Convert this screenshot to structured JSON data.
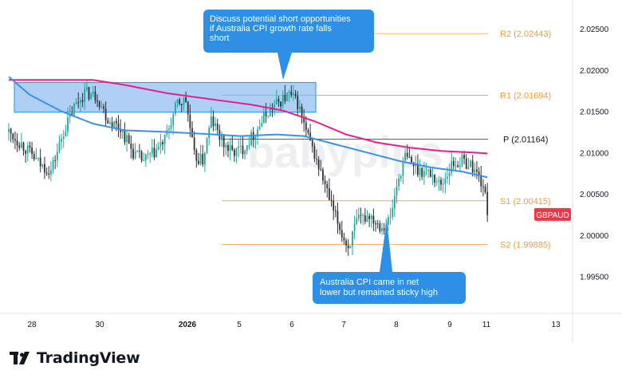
{
  "brand": {
    "name": "TradingView",
    "logo_icon": "tradingview-logo-icon"
  },
  "watermark": "babypips",
  "colors": {
    "up": "#26a69a",
    "down": "#2e3138",
    "candle": "#2b2f36",
    "ma_fast": "#3b91e8",
    "ma_slow": "#e91e8c",
    "pivot_lines": "#f39c33",
    "pivot_p": "#2b2f36",
    "callout": "#2e8fe6",
    "zone": "#9fc8f2",
    "price_badge": "#f23645"
  },
  "chart_data": {
    "type": "candlestick",
    "symbol": "GBPAUD",
    "x_tick_labels": [
      "28",
      "30",
      "2026",
      "5",
      "6",
      "7",
      "8",
      "9",
      "11",
      "13"
    ],
    "y_tick_labels": [
      "2.02500",
      "2.02000",
      "2.01500",
      "2.01000",
      "2.00500",
      "2.00000",
      "1.99500"
    ],
    "ylim": [
      1.9905,
      2.0285
    ],
    "pivot_levels": [
      {
        "label": "R2 (2.02443)",
        "value": 2.02443
      },
      {
        "label": "R1 (2.01694)",
        "value": 2.01694
      },
      {
        "label": "P (2.01164)",
        "value": 2.01164
      },
      {
        "label": "S1 (2.00415)",
        "value": 2.00415
      },
      {
        "label": "S2 (1.99885)",
        "value": 1.99885
      }
    ],
    "resistance_zone": {
      "high": 2.0185,
      "low": 2.0149
    },
    "annotations": [
      {
        "text": [
          "Discuss potential short opportunities",
          "if Australia CPI growth rate falls",
          "short"
        ]
      },
      {
        "text": [
          "Australia CPI came in net",
          "lower but remained sticky high"
        ]
      }
    ],
    "price_badge": {
      "label": "GBPAUD",
      "value": 2.0025
    },
    "anchors": [
      [
        0,
        2.0125
      ],
      [
        7,
        2.0108
      ],
      [
        15,
        2.0085
      ],
      [
        20,
        2.0078
      ],
      [
        26,
        2.0125
      ],
      [
        31,
        2.0155
      ],
      [
        36,
        2.0173
      ],
      [
        42,
        2.0168
      ],
      [
        47,
        2.014
      ],
      [
        53,
        2.013
      ],
      [
        59,
        2.01
      ],
      [
        64,
        2.009
      ],
      [
        69,
        2.01
      ],
      [
        74,
        2.0115
      ],
      [
        80,
        2.016
      ],
      [
        84,
        2.0163
      ],
      [
        88,
        2.0095
      ],
      [
        92,
        2.009
      ],
      [
        96,
        2.014
      ],
      [
        102,
        2.011
      ],
      [
        106,
        2.01
      ],
      [
        111,
        2.0105
      ],
      [
        117,
        2.0125
      ],
      [
        123,
        2.015
      ],
      [
        129,
        2.0163
      ],
      [
        133,
        2.017
      ],
      [
        137,
        2.016
      ],
      [
        141,
        2.0125
      ],
      [
        146,
        2.009
      ],
      [
        150,
        2.006
      ],
      [
        153,
        2.0035
      ],
      [
        156,
        2.0015
      ],
      [
        159,
        1.9995
      ],
      [
        161,
        1.9985
      ],
      [
        165,
        2.0015
      ],
      [
        171,
        2.0025
      ],
      [
        177,
        2.001
      ],
      [
        181,
        2.002
      ],
      [
        184,
        2.006
      ],
      [
        188,
        2.0095
      ],
      [
        194,
        2.008
      ],
      [
        200,
        2.0075
      ],
      [
        205,
        2.006
      ],
      [
        210,
        2.0085
      ],
      [
        215,
        2.009
      ],
      [
        219,
        2.0085
      ],
      [
        222,
        2.0075
      ],
      [
        225,
        2.006
      ],
      [
        227,
        2.003
      ]
    ],
    "ma_fast": [
      [
        0,
        2.0192
      ],
      [
        10,
        2.017
      ],
      [
        25,
        2.015
      ],
      [
        40,
        2.0135
      ],
      [
        55,
        2.0127
      ],
      [
        75,
        2.0125
      ],
      [
        90,
        2.0123
      ],
      [
        110,
        2.012
      ],
      [
        127,
        2.0122
      ],
      [
        140,
        2.012
      ],
      [
        155,
        2.011
      ],
      [
        170,
        2.01
      ],
      [
        185,
        2.009
      ],
      [
        200,
        2.0082
      ],
      [
        215,
        2.0077
      ],
      [
        227,
        2.007
      ]
    ],
    "ma_slow": [
      [
        0,
        2.0188
      ],
      [
        20,
        2.0188
      ],
      [
        40,
        2.0188
      ],
      [
        55,
        2.0182
      ],
      [
        75,
        2.0172
      ],
      [
        95,
        2.0165
      ],
      [
        115,
        2.0158
      ],
      [
        130,
        2.0151
      ],
      [
        145,
        2.0138
      ],
      [
        160,
        2.0122
      ],
      [
        175,
        2.0112
      ],
      [
        190,
        2.0106
      ],
      [
        205,
        2.0102
      ],
      [
        220,
        2.01
      ],
      [
        227,
        2.0099
      ]
    ]
  }
}
